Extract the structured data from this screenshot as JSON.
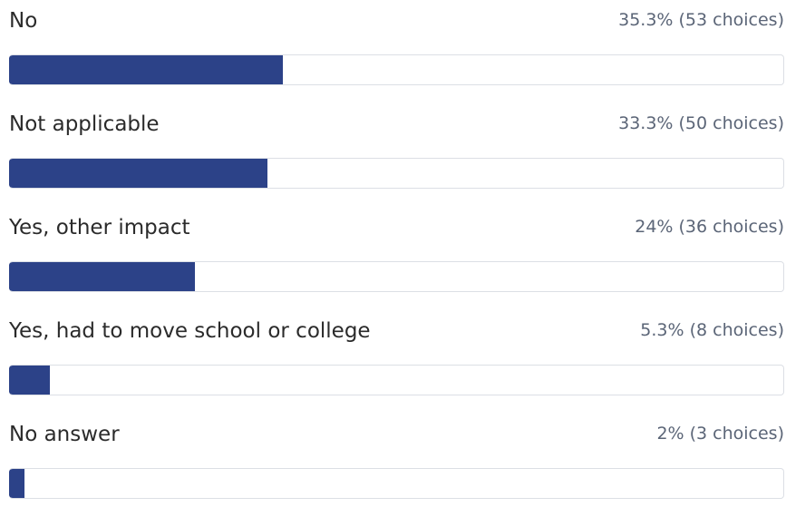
{
  "chart_data": {
    "type": "bar",
    "orientation": "horizontal",
    "max_value": 150,
    "bar_color": "#2c4288",
    "track_border_color": "#dcdfe5",
    "items": [
      {
        "label": "No",
        "percent": 35.3,
        "count": 53,
        "stat_text": "35.3% (53 choices)"
      },
      {
        "label": "Not applicable",
        "percent": 33.3,
        "count": 50,
        "stat_text": "33.3% (50 choices)"
      },
      {
        "label": "Yes, other impact",
        "percent": 24,
        "count": 36,
        "stat_text": "24% (36 choices)"
      },
      {
        "label": "Yes, had to move school or college",
        "percent": 5.3,
        "count": 8,
        "stat_text": "5.3% (8 choices)"
      },
      {
        "label": "No answer",
        "percent": 2,
        "count": 3,
        "stat_text": "2% (3 choices)"
      }
    ]
  }
}
